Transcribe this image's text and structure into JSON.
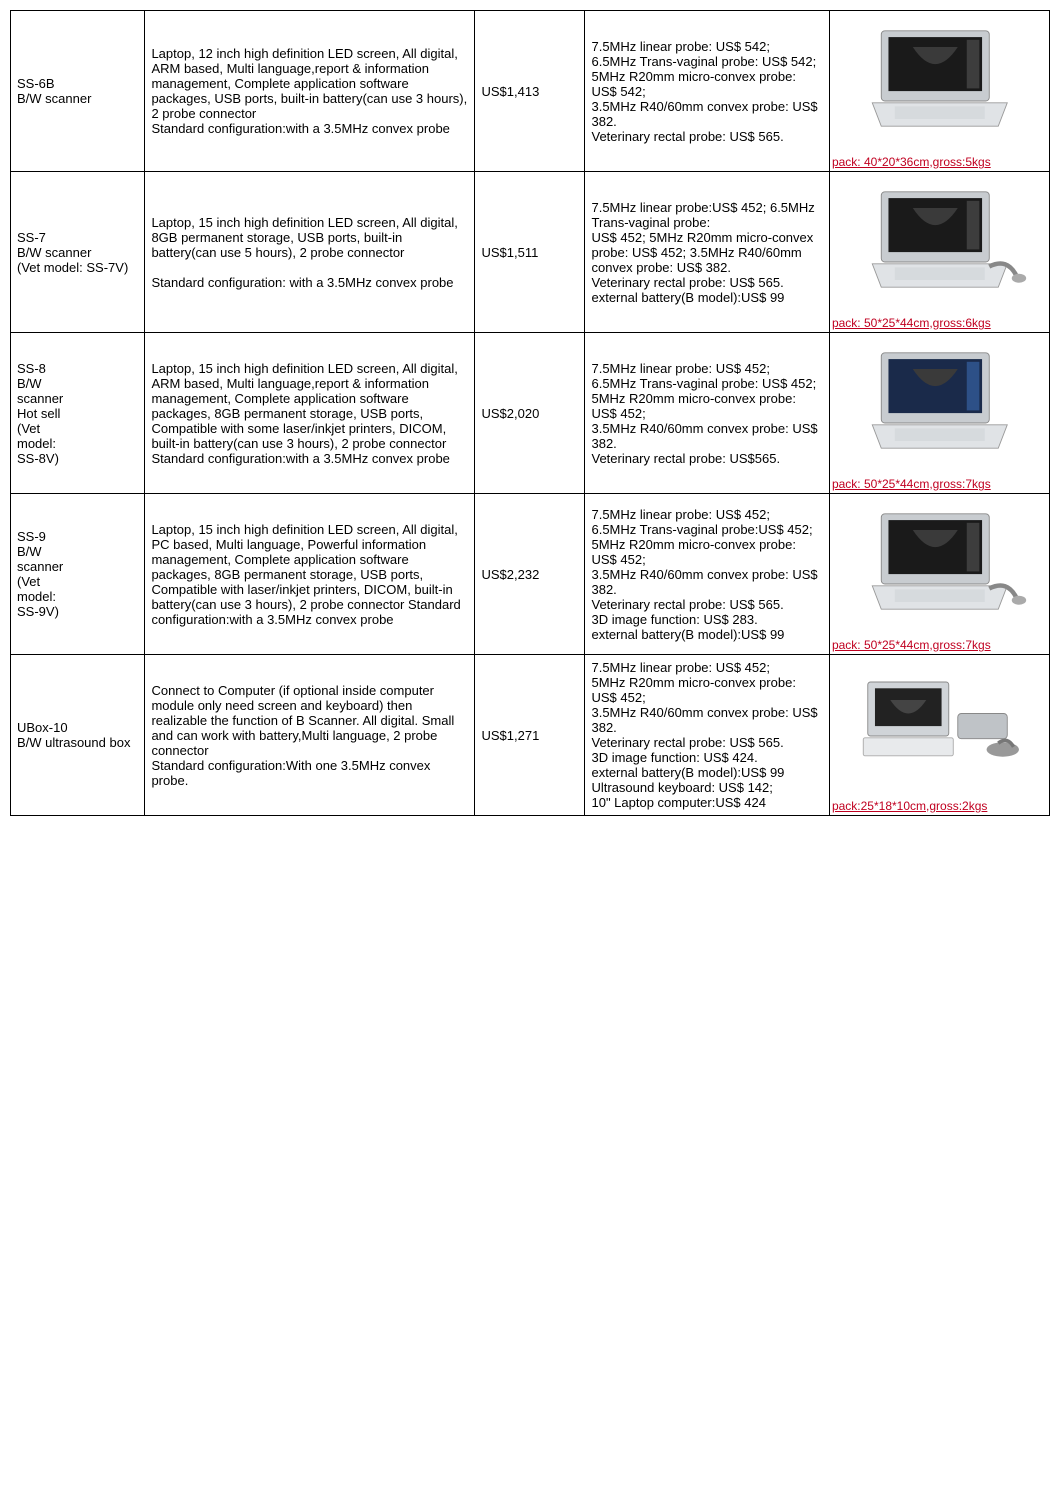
{
  "rows": [
    {
      "model": "SS-6B\nB/W scanner",
      "description": "Laptop, 12 inch high definition LED screen, All digital, ARM based, Multi language,report & information management, Complete application software packages, USB ports, built-in battery(can use 3 hours), 2 probe connector\nStandard configuration:with a 3.5MHz convex probe",
      "price": "US$1,413",
      "options": "7.5MHz linear probe: US$ 542;\n6.5MHz Trans-vaginal probe: US$ 542;\n5MHz R20mm micro-convex probe: US$ 542;\n3.5MHz R40/60mm convex probe: US$ 382.\nVeterinary rectal probe: US$ 565.",
      "pack": "pack: 40*20*36cm,gross:5kgs",
      "image_type": "laptop-bw"
    },
    {
      "model": "SS-7\nB/W scanner\n(Vet model: SS-7V)",
      "description": "Laptop, 15 inch high definition LED screen, All digital, 8GB permanent storage, USB ports, built-in battery(can use 5 hours), 2 probe connector\n\nStandard configuration: with a 3.5MHz convex probe",
      "price": "US$1,511",
      "options": "7.5MHz linear probe:US$ 452; 6.5MHz Trans-vaginal probe:\nUS$ 452; 5MHz R20mm micro-convex probe: US$ 452; 3.5MHz R40/60mm convex probe: US$ 382.\nVeterinary rectal probe: US$ 565. external battery(B model):US$ 99",
      "pack": "pack: 50*25*44cm,gross:6kgs",
      "image_type": "laptop-bw-green"
    },
    {
      "model": "SS-8\nB/W\nscanner\nHot sell\n(Vet\nmodel:\nSS-8V)",
      "description": "Laptop, 15 inch high definition LED screen, All digital, ARM based, Multi language,report & information management, Complete application software packages, 8GB permanent storage, USB ports, Compatible with some laser/inkjet printers, DICOM, built-in battery(can use 3 hours), 2 probe connector\nStandard configuration:with a 3.5MHz convex probe",
      "price": "US$2,020",
      "options": "7.5MHz linear probe: US$ 452;\n6.5MHz Trans-vaginal probe: US$ 452;\n5MHz R20mm micro-convex probe: US$ 452;\n3.5MHz R40/60mm convex probe: US$ 382.\nVeterinary rectal probe: US$565.",
      "pack": "pack: 50*25*44cm,gross:7kgs",
      "image_type": "laptop-color"
    },
    {
      "model": "SS-9\nB/W\nscanner\n(Vet\nmodel:\nSS-9V)",
      "description": "Laptop, 15 inch high definition LED screen, All digital, PC based, Multi language, Powerful information management, Complete application software packages, 8GB permanent storage, USB ports, Compatible with laser/inkjet printers, DICOM, built-in battery(can use 3 hours), 2 probe connector Standard configuration:with a 3.5MHz convex probe",
      "price": "US$2,232",
      "options": "7.5MHz linear probe: US$ 452;\n6.5MHz Trans-vaginal probe:US$ 452;\n5MHz R20mm micro-convex probe: US$ 452;\n3.5MHz R40/60mm convex probe: US$ 382.\nVeterinary rectal probe: US$ 565.\n3D image function: US$ 283.\nexternal battery(B model):US$ 99",
      "pack": "pack: 50*25*44cm,gross:7kgs",
      "image_type": "laptop-probe"
    },
    {
      "model": "UBox-10\nB/W ultrasound box",
      "description": "Connect to Computer (if optional inside computer module only need screen and keyboard) then realizable the function of B Scanner. All digital. Small and can work with battery,Multi language, 2 probe connector\nStandard configuration:With one 3.5MHz convex probe.",
      "price": "US$1,271",
      "options": "7.5MHz linear probe: US$ 452;\n5MHz R20mm micro-convex probe: US$ 452;\n3.5MHz R40/60mm convex probe: US$ 382.\nVeterinary rectal probe: US$ 565.\n3D image function: US$ 424.\nexternal battery(B model):US$ 99\nUltrasound keyboard: US$ 142;\n10\" Laptop computer:US$ 424",
      "pack": "pack:25*18*10cm,gross:2kgs",
      "image_type": "box-laptop"
    }
  ],
  "colors": {
    "pack_text": "#c00020",
    "border": "#000000"
  }
}
